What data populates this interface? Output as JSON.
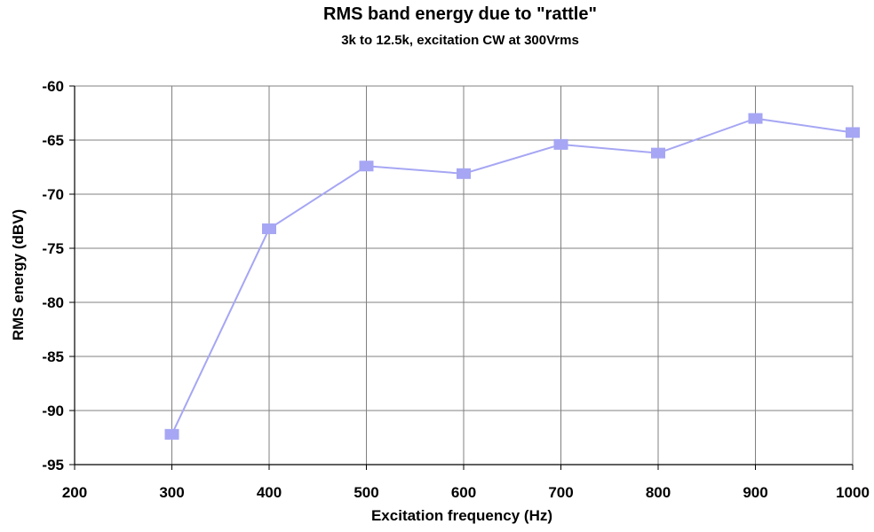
{
  "chart_data": {
    "type": "line",
    "title": "RMS band energy due to \"rattle\"",
    "subtitle": "3k to 12.5k, excitation CW at 300Vrms",
    "xlabel": "Excitation frequency (Hz)",
    "ylabel": "RMS energy (dBV)",
    "xlim": [
      200,
      1000
    ],
    "ylim": [
      -95,
      -60
    ],
    "xticks": [
      200,
      300,
      400,
      500,
      600,
      700,
      800,
      900,
      1000
    ],
    "yticks": [
      -60,
      -65,
      -70,
      -75,
      -80,
      -85,
      -90,
      -95
    ],
    "grid": true,
    "legend": "none",
    "series": [
      {
        "color": "#a6a6f4",
        "marker": "square",
        "x": [
          300,
          400,
          500,
          600,
          700,
          800,
          900,
          1000
        ],
        "y": [
          -92.2,
          -73.2,
          -67.4,
          -68.1,
          -65.4,
          -66.2,
          -63.0,
          -64.3
        ]
      }
    ]
  }
}
